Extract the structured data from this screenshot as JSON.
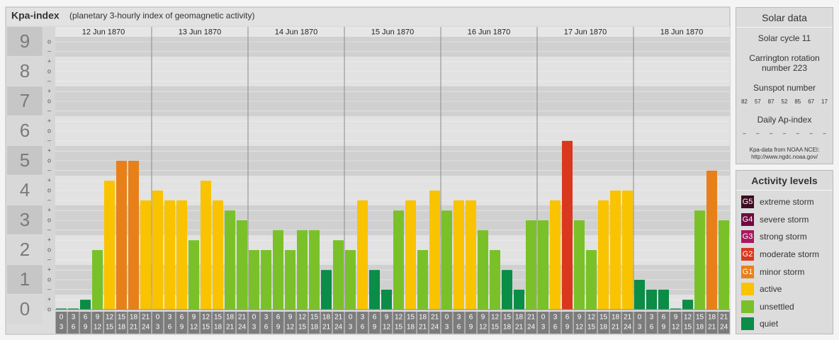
{
  "chart_data": {
    "type": "bar",
    "title": "Kpa-index",
    "subtitle": "(planetary 3-hourly index of geomagnetic activity)",
    "days": [
      "12 Jun 1870",
      "13 Jun 1870",
      "14 Jun 1870",
      "15 Jun 1870",
      "16 Jun 1870",
      "17 Jun 1870",
      "18 Jun 1870"
    ],
    "hour_labels": [
      [
        0,
        3
      ],
      [
        3,
        6
      ],
      [
        6,
        9
      ],
      [
        9,
        12
      ],
      [
        12,
        15
      ],
      [
        15,
        18
      ],
      [
        18,
        21
      ],
      [
        21,
        24
      ]
    ],
    "values": [
      0,
      0,
      0.33,
      2,
      4.33,
      5,
      5,
      3.67,
      4,
      3.67,
      3.67,
      2.33,
      4.33,
      3.67,
      3.33,
      3,
      2,
      2,
      2.67,
      2,
      2.67,
      2.67,
      1.33,
      2.33,
      2,
      3.67,
      1.33,
      0.67,
      3.33,
      3.67,
      2,
      4,
      3.33,
      3.67,
      3.67,
      2.67,
      2,
      1.33,
      0.67,
      3,
      3,
      3.67,
      5.67,
      3,
      2,
      3.67,
      4,
      4,
      1,
      0.67,
      0.67,
      0,
      0.33,
      3.33,
      4.67,
      3
    ],
    "colors": [
      "#0b8c47",
      "#0b8c47",
      "#0b8c47",
      "#7ac129",
      "#f9c300",
      "#e8801a",
      "#e8801a",
      "#f9c300",
      "#f9c300",
      "#f9c300",
      "#f9c300",
      "#7ac129",
      "#f9c300",
      "#f9c300",
      "#7ac129",
      "#7ac129",
      "#7ac129",
      "#7ac129",
      "#7ac129",
      "#7ac129",
      "#7ac129",
      "#7ac129",
      "#0b8c47",
      "#7ac129",
      "#7ac129",
      "#f9c300",
      "#0b8c47",
      "#0b8c47",
      "#7ac129",
      "#f9c300",
      "#7ac129",
      "#f9c300",
      "#7ac129",
      "#f9c300",
      "#f9c300",
      "#7ac129",
      "#7ac129",
      "#0b8c47",
      "#0b8c47",
      "#7ac129",
      "#7ac129",
      "#f9c300",
      "#d9381e",
      "#7ac129",
      "#7ac129",
      "#f9c300",
      "#f9c300",
      "#f9c300",
      "#0b8c47",
      "#0b8c47",
      "#0b8c47",
      "#0b8c47",
      "#0b8c47",
      "#7ac129",
      "#e8801a",
      "#7ac129"
    ],
    "ylim": [
      0,
      9.5
    ],
    "yticks": [
      0,
      1,
      2,
      3,
      4,
      5,
      6,
      7,
      8,
      9
    ],
    "yminor_ticks": [
      {
        "value": 0,
        "label": "o"
      },
      {
        "value": 0.33,
        "label": "+"
      },
      {
        "value": 0.67,
        "label": "–"
      },
      {
        "value": 1,
        "label": "o"
      },
      {
        "value": 1.33,
        "label": "+"
      },
      {
        "value": 1.67,
        "label": "–"
      },
      {
        "value": 2,
        "label": "o"
      },
      {
        "value": 2.33,
        "label": "+"
      },
      {
        "value": 2.67,
        "label": "–"
      },
      {
        "value": 3,
        "label": "o"
      },
      {
        "value": 3.33,
        "label": "+"
      },
      {
        "value": 3.67,
        "label": "–"
      },
      {
        "value": 4,
        "label": "o"
      },
      {
        "value": 4.33,
        "label": "+"
      },
      {
        "value": 4.67,
        "label": "–"
      },
      {
        "value": 5,
        "label": "o"
      },
      {
        "value": 5.33,
        "label": "+"
      },
      {
        "value": 5.67,
        "label": "–"
      },
      {
        "value": 6,
        "label": "o"
      },
      {
        "value": 6.33,
        "label": "+"
      },
      {
        "value": 6.67,
        "label": "–"
      },
      {
        "value": 7,
        "label": "o"
      },
      {
        "value": 7.33,
        "label": "+"
      },
      {
        "value": 7.67,
        "label": "–"
      },
      {
        "value": 8,
        "label": "o"
      },
      {
        "value": 8.33,
        "label": "+"
      },
      {
        "value": 8.67,
        "label": "–"
      },
      {
        "value": 9,
        "label": "o"
      }
    ]
  },
  "solar_data": {
    "title": "Solar data",
    "solar_cycle": "Solar cycle 11",
    "carrington": "Carrington rotation number 223",
    "sunspot_title": "Sunspot number",
    "sunspot_numbers": [
      82,
      57,
      87,
      52,
      85,
      67,
      17
    ],
    "ap_title": "Daily Ap-index",
    "ap_values": [
      "–",
      "–",
      "–",
      "–",
      "–",
      "–",
      "–"
    ],
    "source": [
      "Kpa-data from NOAA NCEI:",
      "http://www.ngdc.noaa.gov/"
    ]
  },
  "activity_levels": {
    "title": "Activity levels",
    "items": [
      {
        "code": "G5",
        "name": "extreme storm",
        "color": "#3d0c22"
      },
      {
        "code": "G4",
        "name": "severe storm",
        "color": "#6d0b3f"
      },
      {
        "code": "G3",
        "name": "strong storm",
        "color": "#a8185f"
      },
      {
        "code": "G2",
        "name": "moderate storm",
        "color": "#d9381e"
      },
      {
        "code": "G1",
        "name": "minor storm",
        "color": "#e8801a"
      },
      {
        "name": "active",
        "color": "#f9c300"
      },
      {
        "name": "unsettled",
        "color": "#7ac129"
      },
      {
        "name": "quiet",
        "color": "#0b8c47"
      }
    ]
  }
}
